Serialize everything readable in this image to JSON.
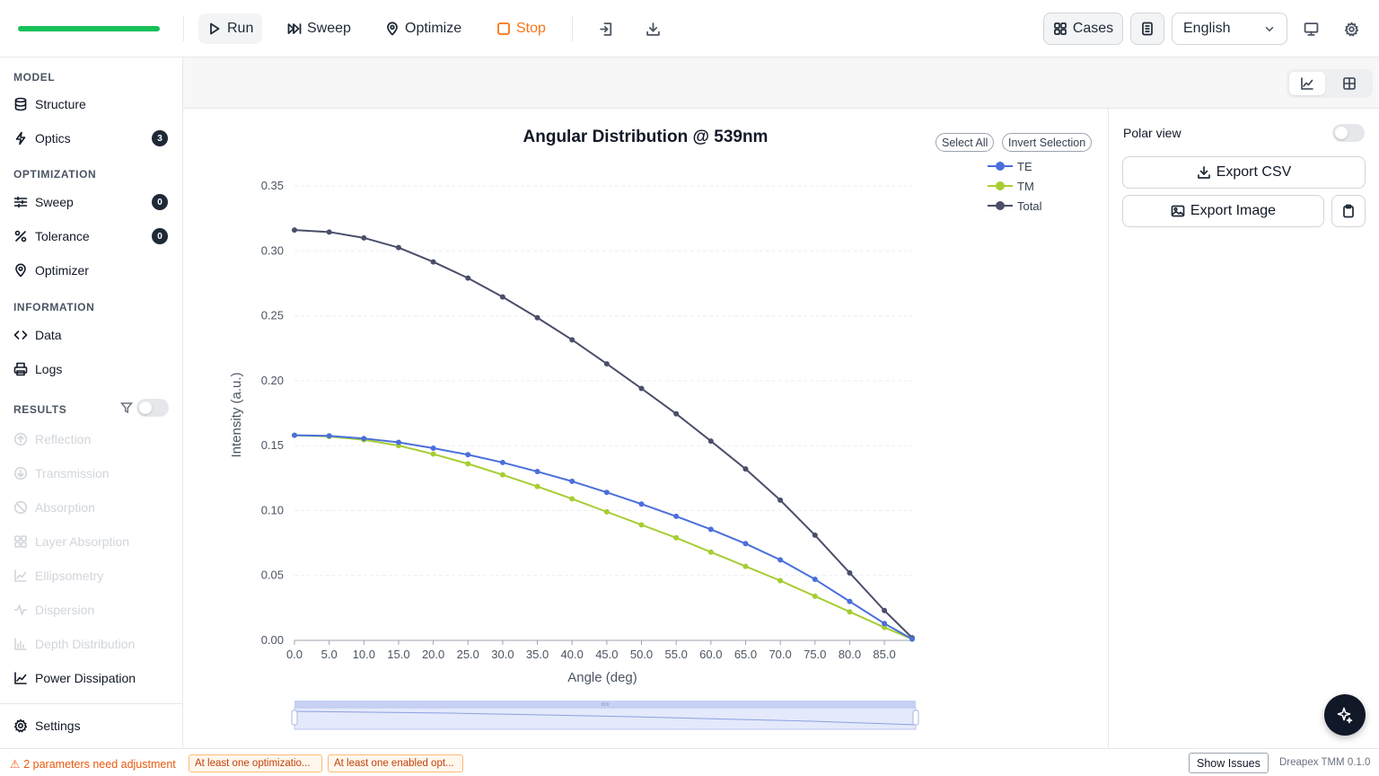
{
  "toolbar": {
    "progress_fraction": 1.0,
    "progress_color": "#16c15a",
    "run_label": "Run",
    "sweep_label": "Sweep",
    "optimize_label": "Optimize",
    "stop_label": "Stop",
    "cases_label": "Cases",
    "language": "English"
  },
  "sidebar": {
    "model_title": "MODEL",
    "structure_label": "Structure",
    "optics_label": "Optics",
    "optics_badge": "3",
    "optimization_title": "OPTIMIZATION",
    "sweep_label": "Sweep",
    "sweep_badge": "0",
    "tolerance_label": "Tolerance",
    "tolerance_badge": "0",
    "optimizer_label": "Optimizer",
    "information_title": "INFORMATION",
    "data_label": "Data",
    "logs_label": "Logs",
    "results_title": "RESULTS",
    "results": [
      {
        "label": "Reflection",
        "enabled": false,
        "icon": "reflection-icon"
      },
      {
        "label": "Transmission",
        "enabled": false,
        "icon": "transmission-icon"
      },
      {
        "label": "Absorption",
        "enabled": false,
        "icon": "absorption-icon"
      },
      {
        "label": "Layer Absorption",
        "enabled": false,
        "icon": "layer-absorption-icon"
      },
      {
        "label": "Ellipsometry",
        "enabled": false,
        "icon": "ellipsometry-icon"
      },
      {
        "label": "Dispersion",
        "enabled": false,
        "icon": "dispersion-icon"
      },
      {
        "label": "Depth Distribution",
        "enabled": false,
        "icon": "depth-distribution-icon"
      },
      {
        "label": "Power Dissipation",
        "enabled": true,
        "icon": "power-dissipation-icon"
      }
    ],
    "settings_label": "Settings"
  },
  "chart_controls": {
    "select_all_label": "Select All",
    "invert_selection_label": "Invert Selection"
  },
  "chart_data": {
    "type": "line",
    "title": "Angular Distribution @ 539nm",
    "xlabel": "Angle (deg)",
    "ylabel": "Intensity (a.u.)",
    "x": [
      0,
      5,
      10,
      15,
      20,
      25,
      30,
      35,
      40,
      45,
      50,
      55,
      60,
      65,
      70,
      75,
      80,
      85,
      89
    ],
    "x_tick_labels": [
      "0.0",
      "5.0",
      "10.0",
      "15.0",
      "20.0",
      "25.0",
      "30.0",
      "35.0",
      "40.0",
      "45.0",
      "50.0",
      "55.0",
      "60.0",
      "65.0",
      "70.0",
      "75.0",
      "80.0",
      "85.0"
    ],
    "y_ticks": [
      "0.00",
      "0.05",
      "0.10",
      "0.15",
      "0.20",
      "0.25",
      "0.30",
      "0.35"
    ],
    "xlim": [
      0,
      89
    ],
    "ylim": [
      0,
      0.35
    ],
    "grid": true,
    "legend_position": "top-right",
    "series": [
      {
        "name": "TE",
        "color": "#4a6fdc",
        "values": [
          0.158,
          0.1575,
          0.1555,
          0.1525,
          0.148,
          0.143,
          0.137,
          0.13,
          0.1225,
          0.114,
          0.105,
          0.0955,
          0.0855,
          0.0745,
          0.062,
          0.047,
          0.03,
          0.013,
          0.001
        ]
      },
      {
        "name": "TM",
        "color": "#a6cd32",
        "values": [
          0.158,
          0.157,
          0.1545,
          0.15,
          0.1435,
          0.136,
          0.1275,
          0.1185,
          0.109,
          0.099,
          0.089,
          0.079,
          0.068,
          0.057,
          0.046,
          0.034,
          0.022,
          0.01,
          0.001
        ]
      },
      {
        "name": "Total",
        "color": "#4a4e6a",
        "values": [
          0.316,
          0.3145,
          0.31,
          0.3025,
          0.2915,
          0.279,
          0.2645,
          0.2485,
          0.2315,
          0.213,
          0.194,
          0.1745,
          0.1535,
          0.132,
          0.108,
          0.081,
          0.052,
          0.023,
          0.002
        ]
      }
    ]
  },
  "panel": {
    "polar_view_label": "Polar view",
    "export_csv_label": "Export CSV",
    "export_image_label": "Export Image"
  },
  "statusbar": {
    "warning_text": "2 parameters need adjustment",
    "tag1": "At least one optimizatio...",
    "tag2": "At least one enabled opt...",
    "show_issues_label": "Show Issues",
    "version": "Dreapex TMM 0.1.0"
  }
}
